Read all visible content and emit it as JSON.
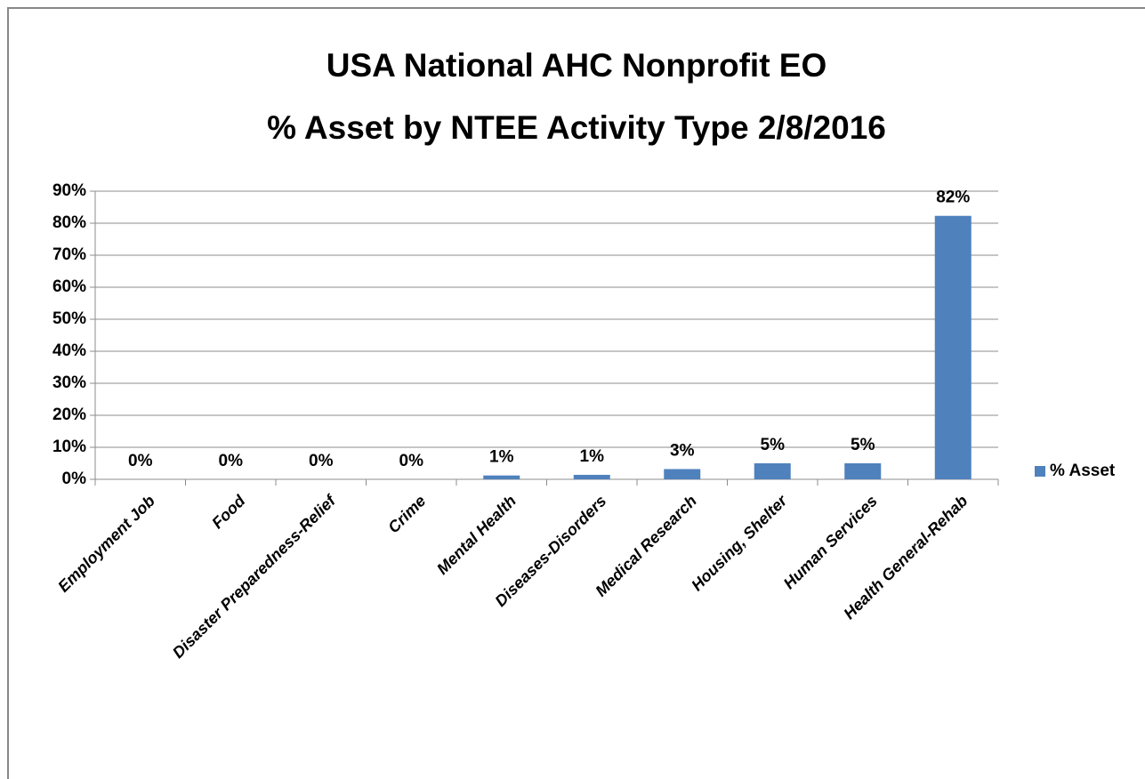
{
  "chart_data": {
    "type": "bar",
    "title": [
      "USA National AHC Nonprofit EO",
      "% Asset by NTEE Activity Type 2/8/2016"
    ],
    "categories": [
      "Employment Job",
      "Food",
      "Disaster Preparedness-Relief",
      "Crime",
      "Mental Health",
      "Diseases-Disorders",
      "Medical Research",
      "Housing, Shelter",
      "Human Services",
      "Health General-Rehab"
    ],
    "series": [
      {
        "name": "% Asset",
        "color": "#4f81bd",
        "values": [
          0,
          0,
          0,
          0,
          1.2,
          1.4,
          3.2,
          5.0,
          5.0,
          82.3
        ],
        "value_labels": [
          "0%",
          "0%",
          "0%",
          "0%",
          "1%",
          "1%",
          "3%",
          "5%",
          "5%",
          "82%"
        ]
      }
    ],
    "ylim": [
      0,
      90
    ],
    "yticks": [
      {
        "value": 0,
        "label": "0%"
      },
      {
        "value": 10,
        "label": "10%"
      },
      {
        "value": 20,
        "label": "20%"
      },
      {
        "value": 30,
        "label": "30%"
      },
      {
        "value": 40,
        "label": "40%"
      },
      {
        "value": 50,
        "label": "50%"
      },
      {
        "value": 60,
        "label": "60%"
      },
      {
        "value": 70,
        "label": "70%"
      },
      {
        "value": 80,
        "label": "80%"
      },
      {
        "value": 90,
        "label": "90%"
      }
    ],
    "grid": true,
    "legend": "right"
  }
}
